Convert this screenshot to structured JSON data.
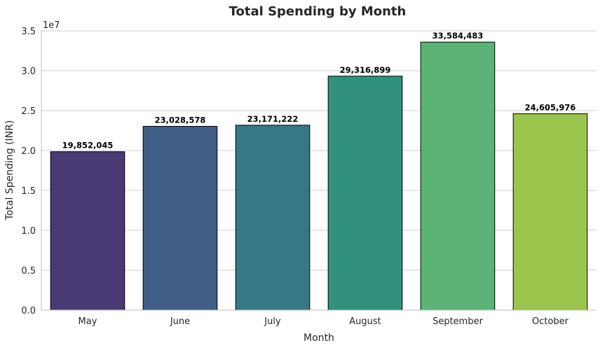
{
  "chart_data": {
    "type": "bar",
    "title": "Total Spending by Month",
    "xlabel": "Month",
    "ylabel": "Total Spending (INR)",
    "y_offset_label": "1e7",
    "categories": [
      "May",
      "June",
      "July",
      "August",
      "September",
      "October"
    ],
    "values": [
      19852045,
      23028578,
      23171222,
      29316899,
      33584483,
      24605976
    ],
    "value_labels": [
      "19,852,045",
      "23,028,578",
      "23,171,222",
      "29,316,899",
      "33,584,483",
      "24,605,976"
    ],
    "ylim": [
      0,
      35000000
    ],
    "ytick_values": [
      0,
      5000000,
      10000000,
      15000000,
      20000000,
      25000000,
      30000000,
      35000000
    ],
    "ytick_labels": [
      "0.0",
      "0.5",
      "1.0",
      "1.5",
      "2.0",
      "2.5",
      "3.0",
      "3.5"
    ],
    "grid": "horizontal",
    "legend": "none",
    "colors": [
      "#4a3a74",
      "#415e86",
      "#377886",
      "#31917d",
      "#5ab374",
      "#9ac64d"
    ],
    "bar_edge_color": "#000000",
    "grid_color": "#cccccc",
    "text_color": "#262626"
  }
}
